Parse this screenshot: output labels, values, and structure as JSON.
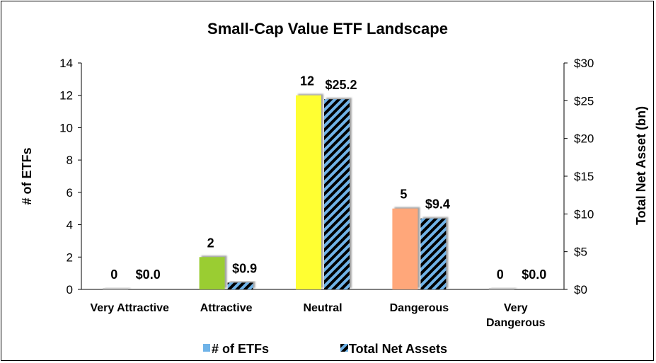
{
  "chart_data": {
    "type": "bar",
    "title": "Small-Cap Value ETF Landscape",
    "categories": [
      "Very Attractive",
      "Attractive",
      "Neutral",
      "Dangerous",
      "Very Dangerous"
    ],
    "category_lines": [
      [
        "Very Attractive"
      ],
      [
        "Attractive"
      ],
      [
        "Neutral"
      ],
      [
        "Dangerous"
      ],
      [
        "Very",
        "Dangerous"
      ]
    ],
    "ylabel_left": "# of ETFs",
    "ylabel_right": "Total Net Asset (bn)",
    "ylim_left": [
      0,
      14
    ],
    "ylim_right": [
      0,
      30
    ],
    "left_ticks": [
      "0",
      "2",
      "4",
      "6",
      "8",
      "10",
      "12",
      "14"
    ],
    "right_ticks": [
      "$0",
      "$5",
      "$10",
      "$15",
      "$20",
      "$25",
      "$30"
    ],
    "series": [
      {
        "name": "# of ETFs",
        "axis": "left",
        "values": [
          0,
          2,
          12,
          5,
          0
        ],
        "labels": [
          "0",
          "2",
          "12",
          "5",
          "0"
        ],
        "colors": [
          "#c8c8c8",
          "#9acd32",
          "#ffff33",
          "#ffa77a",
          "#c8c8c8"
        ]
      },
      {
        "name": "Total Net Assets",
        "axis": "right",
        "values": [
          0.0,
          0.9,
          25.2,
          9.4,
          0.0
        ],
        "labels": [
          "$0.0",
          "$0.9",
          "$25.2",
          "$9.4",
          "$0.0"
        ],
        "pattern": "hatched-blue-black"
      }
    ],
    "legend_position": "bottom",
    "grid": false,
    "colors": {
      "legend_etfs": "#6fb3e8",
      "hatch_a": "#6fb3e8",
      "hatch_b": "#000000"
    }
  }
}
